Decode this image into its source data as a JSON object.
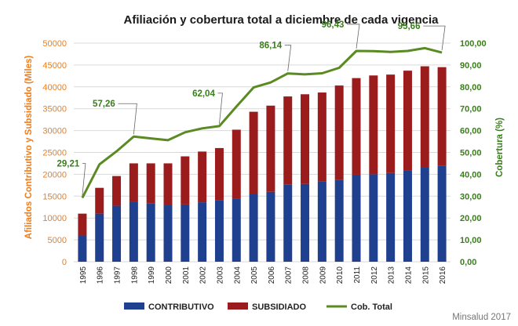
{
  "chart_data": {
    "type": "bar",
    "title": "Afiliación y cobertura total a diciembre de cada vigencia",
    "ylabel": "Afiliados  Contributivo  y Subsidiado (Miles)",
    "y2label": "Cobertura (%)",
    "ylim": [
      0,
      50000
    ],
    "y2lim": [
      0,
      100
    ],
    "y_ticks": [
      "0",
      "5000",
      "10000",
      "15000",
      "20000",
      "25000",
      "30000",
      "35000",
      "40000",
      "45000",
      "50000"
    ],
    "y2_ticks": [
      "0,00",
      "10,00",
      "20,00",
      "30,00",
      "40,00",
      "50,00",
      "60,00",
      "70,00",
      "80,00",
      "90,00",
      "100,00"
    ],
    "categories": [
      "1995",
      "1996",
      "1997",
      "1998",
      "1999",
      "2000",
      "2001",
      "2002",
      "2003",
      "2004",
      "2005",
      "2006",
      "2007",
      "2008",
      "2009",
      "2010",
      "2011",
      "2012",
      "2013",
      "2014",
      "2015",
      "2016"
    ],
    "stacked": true,
    "grid": true,
    "legend_position": "bottom",
    "series": [
      {
        "name": "CONTRIBUTIVO",
        "type": "bar",
        "color": "#1f3f8f",
        "values": [
          6000,
          11000,
          12800,
          13700,
          13300,
          12900,
          13100,
          13600,
          14000,
          14500,
          15500,
          16000,
          17600,
          17800,
          18300,
          18700,
          19900,
          20000,
          20300,
          20800,
          21600,
          22000
        ]
      },
      {
        "name": "SUBSIDIADO",
        "type": "bar",
        "color": "#9b1c1c",
        "values": [
          5000,
          5900,
          6800,
          8800,
          9200,
          9600,
          11000,
          11600,
          12000,
          15700,
          18800,
          19700,
          20200,
          20500,
          20400,
          21600,
          22100,
          22600,
          22500,
          22900,
          23100,
          22500
        ]
      },
      {
        "name": "Cob. Total",
        "type": "line",
        "axis": "right",
        "color": "#5a8a22",
        "values": [
          29.21,
          44.5,
          50.5,
          57.26,
          56.4,
          55.6,
          59.2,
          61.0,
          62.04,
          71.0,
          79.7,
          82.0,
          86.14,
          85.7,
          86.2,
          88.7,
          96.43,
          96.3,
          96.0,
          96.4,
          97.7,
          95.66
        ]
      }
    ],
    "annotations": [
      {
        "label": "29,21",
        "year": "1995"
      },
      {
        "label": "57,26",
        "year": "1998"
      },
      {
        "label": "62,04",
        "year": "2003"
      },
      {
        "label": "86,14",
        "year": "2007"
      },
      {
        "label": "96,43",
        "year": "2011"
      },
      {
        "label": "95,66",
        "year": "2016"
      }
    ]
  },
  "source": "Minsalud 2017"
}
